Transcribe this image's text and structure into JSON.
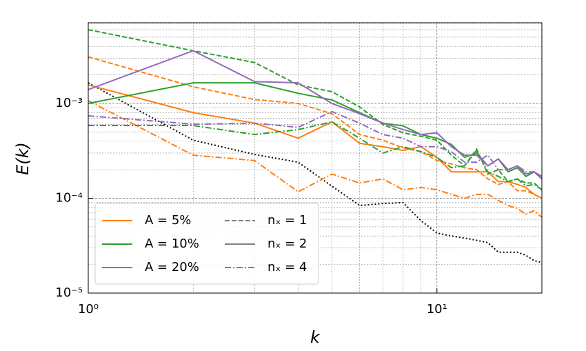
{
  "chart_data": {
    "type": "line",
    "xlabel": "k",
    "ylabel": "E(k)",
    "xscale": "log",
    "yscale": "log",
    "grid": "both",
    "x": [
      1,
      2,
      3,
      4,
      5,
      6,
      7,
      8,
      9,
      10,
      11,
      12,
      13,
      14,
      15,
      16,
      17,
      18,
      19,
      20
    ],
    "xlim": [
      1,
      20
    ],
    "ylim": [
      1e-05,
      0.0071
    ],
    "xticks": [
      {
        "value": 1,
        "label": "10⁰"
      },
      {
        "value": 10,
        "label": "10¹"
      }
    ],
    "yticks": [
      {
        "value": 1e-05,
        "label": "10⁻⁵"
      },
      {
        "value": 0.0001,
        "label": "10⁻⁴"
      },
      {
        "value": 0.001,
        "label": "10⁻³"
      }
    ],
    "series": [
      {
        "color": "#000000",
        "style": "dotted",
        "values": [
          0.00165,
          0.00041,
          0.00029,
          0.00024,
          0.000134,
          8.4e-05,
          8.8e-05,
          9e-05,
          5.8e-05,
          4.3e-05,
          4e-05,
          3.8e-05,
          3.6e-05,
          3.4e-05,
          2.7e-05,
          2.7e-05,
          2.7e-05,
          2.5e-05,
          2.2e-05,
          2.1e-05
        ]
      },
      {
        "color": "#ff7f0e",
        "style": "dashed",
        "values": [
          0.0031,
          0.0015,
          0.0011,
          0.001,
          0.00078,
          0.00047,
          0.00041,
          0.00034,
          0.00031,
          0.00025,
          0.00023,
          0.00021,
          0.0002,
          0.00016,
          0.00014,
          0.00015,
          0.00012,
          0.00012,
          0.00011,
          0.0001
        ]
      },
      {
        "color": "#ff7f0e",
        "style": "solid",
        "values": [
          0.00157,
          0.0008,
          0.00062,
          0.00043,
          0.00064,
          0.00038,
          0.00035,
          0.00032,
          0.00035,
          0.00027,
          0.00019,
          0.00019,
          0.00019,
          0.00019,
          0.00015,
          0.00015,
          0.00014,
          0.00013,
          0.00011,
          0.0001
        ]
      },
      {
        "color": "#ff7f0e",
        "style": "dashdot",
        "values": [
          0.00107,
          0.000285,
          0.00025,
          0.000117,
          0.00018,
          0.000145,
          0.00016,
          0.000123,
          0.00013,
          0.000123,
          0.00011,
          0.0001,
          0.00011,
          0.00011,
          9.5e-05,
          8.4e-05,
          7.8e-05,
          6.8e-05,
          7.4e-05,
          6.3e-05
        ]
      },
      {
        "color": "#2ca02c",
        "style": "dashed",
        "values": [
          0.006,
          0.0036,
          0.0027,
          0.00157,
          0.00133,
          0.00092,
          0.0006,
          0.00049,
          0.00045,
          0.00041,
          0.000285,
          0.00022,
          0.00033,
          0.00018,
          0.0002,
          0.00015,
          0.00016,
          0.000145,
          0.000145,
          0.000123
        ]
      },
      {
        "color": "#2ca02c",
        "style": "solid",
        "values": [
          0.001,
          0.00165,
          0.00165,
          0.00128,
          0.00109,
          0.0008,
          0.00062,
          0.00058,
          0.00047,
          0.00043,
          0.00037,
          0.00027,
          0.0003,
          0.00022,
          0.00026,
          0.00019,
          0.00021,
          0.00017,
          0.00019,
          0.00016
        ]
      },
      {
        "color": "#2ca02c",
        "style": "dashdot",
        "values": [
          0.000585,
          0.000585,
          0.00047,
          0.00053,
          0.00064,
          0.00043,
          0.0003,
          0.00035,
          0.00031,
          0.00027,
          0.00021,
          0.00022,
          0.00032,
          0.00019,
          0.00017,
          0.00015,
          0.00016,
          0.000135,
          0.00014,
          0.000123
        ]
      },
      {
        "color": "#9467bd",
        "style": "solid",
        "values": [
          0.0014,
          0.0036,
          0.0017,
          0.00165,
          0.001,
          0.00078,
          0.00062,
          0.00053,
          0.00047,
          0.00049,
          0.00035,
          0.000285,
          0.000285,
          0.00022,
          0.00026,
          0.0002,
          0.00022,
          0.00018,
          0.00019,
          0.00017
        ]
      },
      {
        "color": "#9467bd",
        "style": "dashdot",
        "values": [
          0.00074,
          0.000605,
          0.00062,
          0.00056,
          0.00082,
          0.00062,
          0.00047,
          0.00043,
          0.00035,
          0.00035,
          0.00031,
          0.00024,
          0.00024,
          0.000285,
          0.0002,
          0.0002,
          0.00022,
          0.00019,
          0.00019,
          0.00016
        ]
      }
    ],
    "legend": {
      "location": "lower left",
      "color_entries": [
        {
          "label": "A = 5%",
          "color": "#ff7f0e"
        },
        {
          "label": "A = 10%",
          "color": "#2ca02c"
        },
        {
          "label": "A = 20%",
          "color": "#9467bd"
        }
      ],
      "style_entries": [
        {
          "label": "nₓ = 1",
          "style": "dashed"
        },
        {
          "label": "nₓ = 2",
          "style": "solid"
        },
        {
          "label": "nₓ = 4",
          "style": "dashdot"
        }
      ]
    }
  }
}
